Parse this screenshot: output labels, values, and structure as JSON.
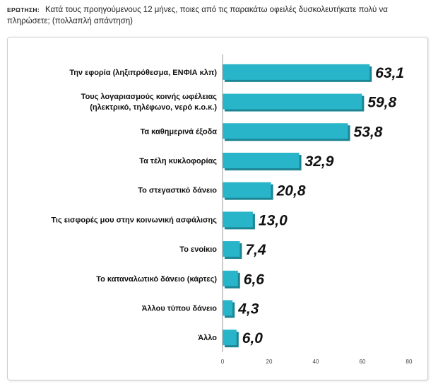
{
  "question": {
    "label": "ΕΡΩΤΗΣΗ:",
    "text": "Κατά τους προηγούμενους 12 μήνες, ποιες από τις παρακάτω οφειλές δυσκολευτήκατε πολύ να πληρώσετε; (πολλαπλή απάντηση)"
  },
  "chart_data": {
    "type": "bar",
    "orientation": "horizontal",
    "categories": [
      [
        "Την εφορία (ληξιπρόθεσμα, ΕΝΦΙΑ κλπ)"
      ],
      [
        "Τους λογαριασμούς κοινής ωφέλειας",
        "(ηλεκτρικό, τηλέφωνο, νερό κ.ο.κ.)"
      ],
      [
        "Τα καθημερινά έξοδα"
      ],
      [
        "Τα τέλη κυκλοφορίας"
      ],
      [
        "Το στεγαστικό δάνειο"
      ],
      [
        "Τις εισφορές μου στην κοινωνική ασφάλισης"
      ],
      [
        "Το ενοίκιο"
      ],
      [
        "Το καταναλωτικό δάνειο (κάρτες)"
      ],
      [
        "Άλλου τύπου δάνειο"
      ],
      [
        "Άλλο"
      ]
    ],
    "values": [
      63.1,
      59.8,
      53.8,
      32.9,
      20.8,
      13.0,
      7.4,
      6.6,
      4.3,
      6.0
    ],
    "value_labels": [
      "63,1",
      "59,8",
      "53,8",
      "32,9",
      "20,8",
      "13,0",
      "7,4",
      "6,6",
      "4,3",
      "6,0"
    ],
    "xlim": [
      0,
      80
    ],
    "xticks": [
      0,
      20,
      40,
      60,
      80
    ],
    "bar_color": "#29b5c9",
    "bar_shadow_color": "#1c8594",
    "grid": false
  }
}
